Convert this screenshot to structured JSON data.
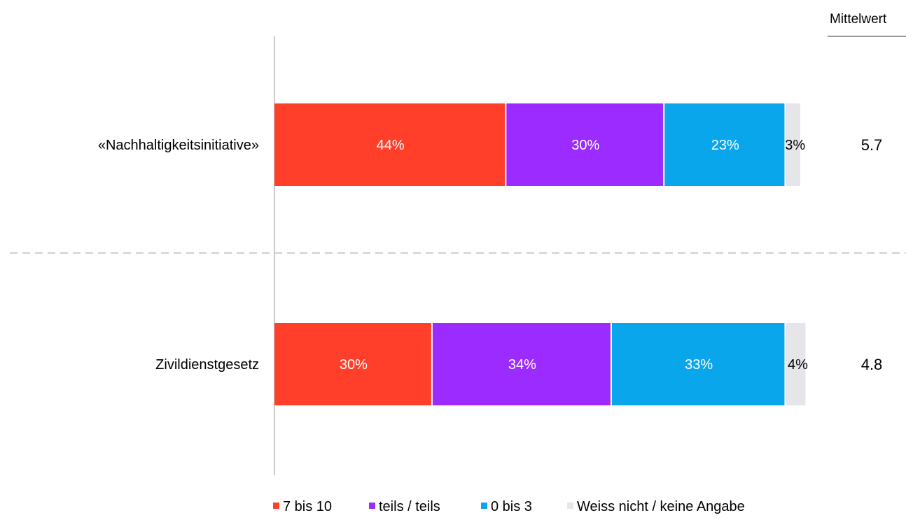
{
  "chart_data": {
    "type": "bar",
    "orientation": "horizontal",
    "stacked": true,
    "categories": [
      "«Nachhaltigkeitsinitiative»",
      "Zivildienstgesetz"
    ],
    "series": [
      {
        "name": "7 bis 10",
        "color": "#ff3f2a",
        "values": [
          44,
          30
        ],
        "labels": [
          "44%",
          "30%"
        ],
        "label_color": "#ffffff"
      },
      {
        "name": "teils / teils",
        "color": "#9b2bff",
        "values": [
          30,
          34
        ],
        "labels": [
          "30%",
          "34%"
        ],
        "label_color": "#ffffff"
      },
      {
        "name": "0 bis 3",
        "color": "#0aa6ec",
        "values": [
          23,
          33
        ],
        "labels": [
          "23%",
          "33%"
        ],
        "label_color": "#ffffff"
      },
      {
        "name": "Weiss nicht / keine Angabe",
        "color": "#e6e6ea",
        "values": [
          3,
          4
        ],
        "labels": [
          "3%",
          "4%"
        ],
        "label_color": "#000000"
      }
    ],
    "xlim": [
      0,
      100
    ],
    "grid": false,
    "legend_position": "bottom",
    "mean_header": "Mittelwert",
    "means": [
      "5.7",
      "4.8"
    ]
  }
}
